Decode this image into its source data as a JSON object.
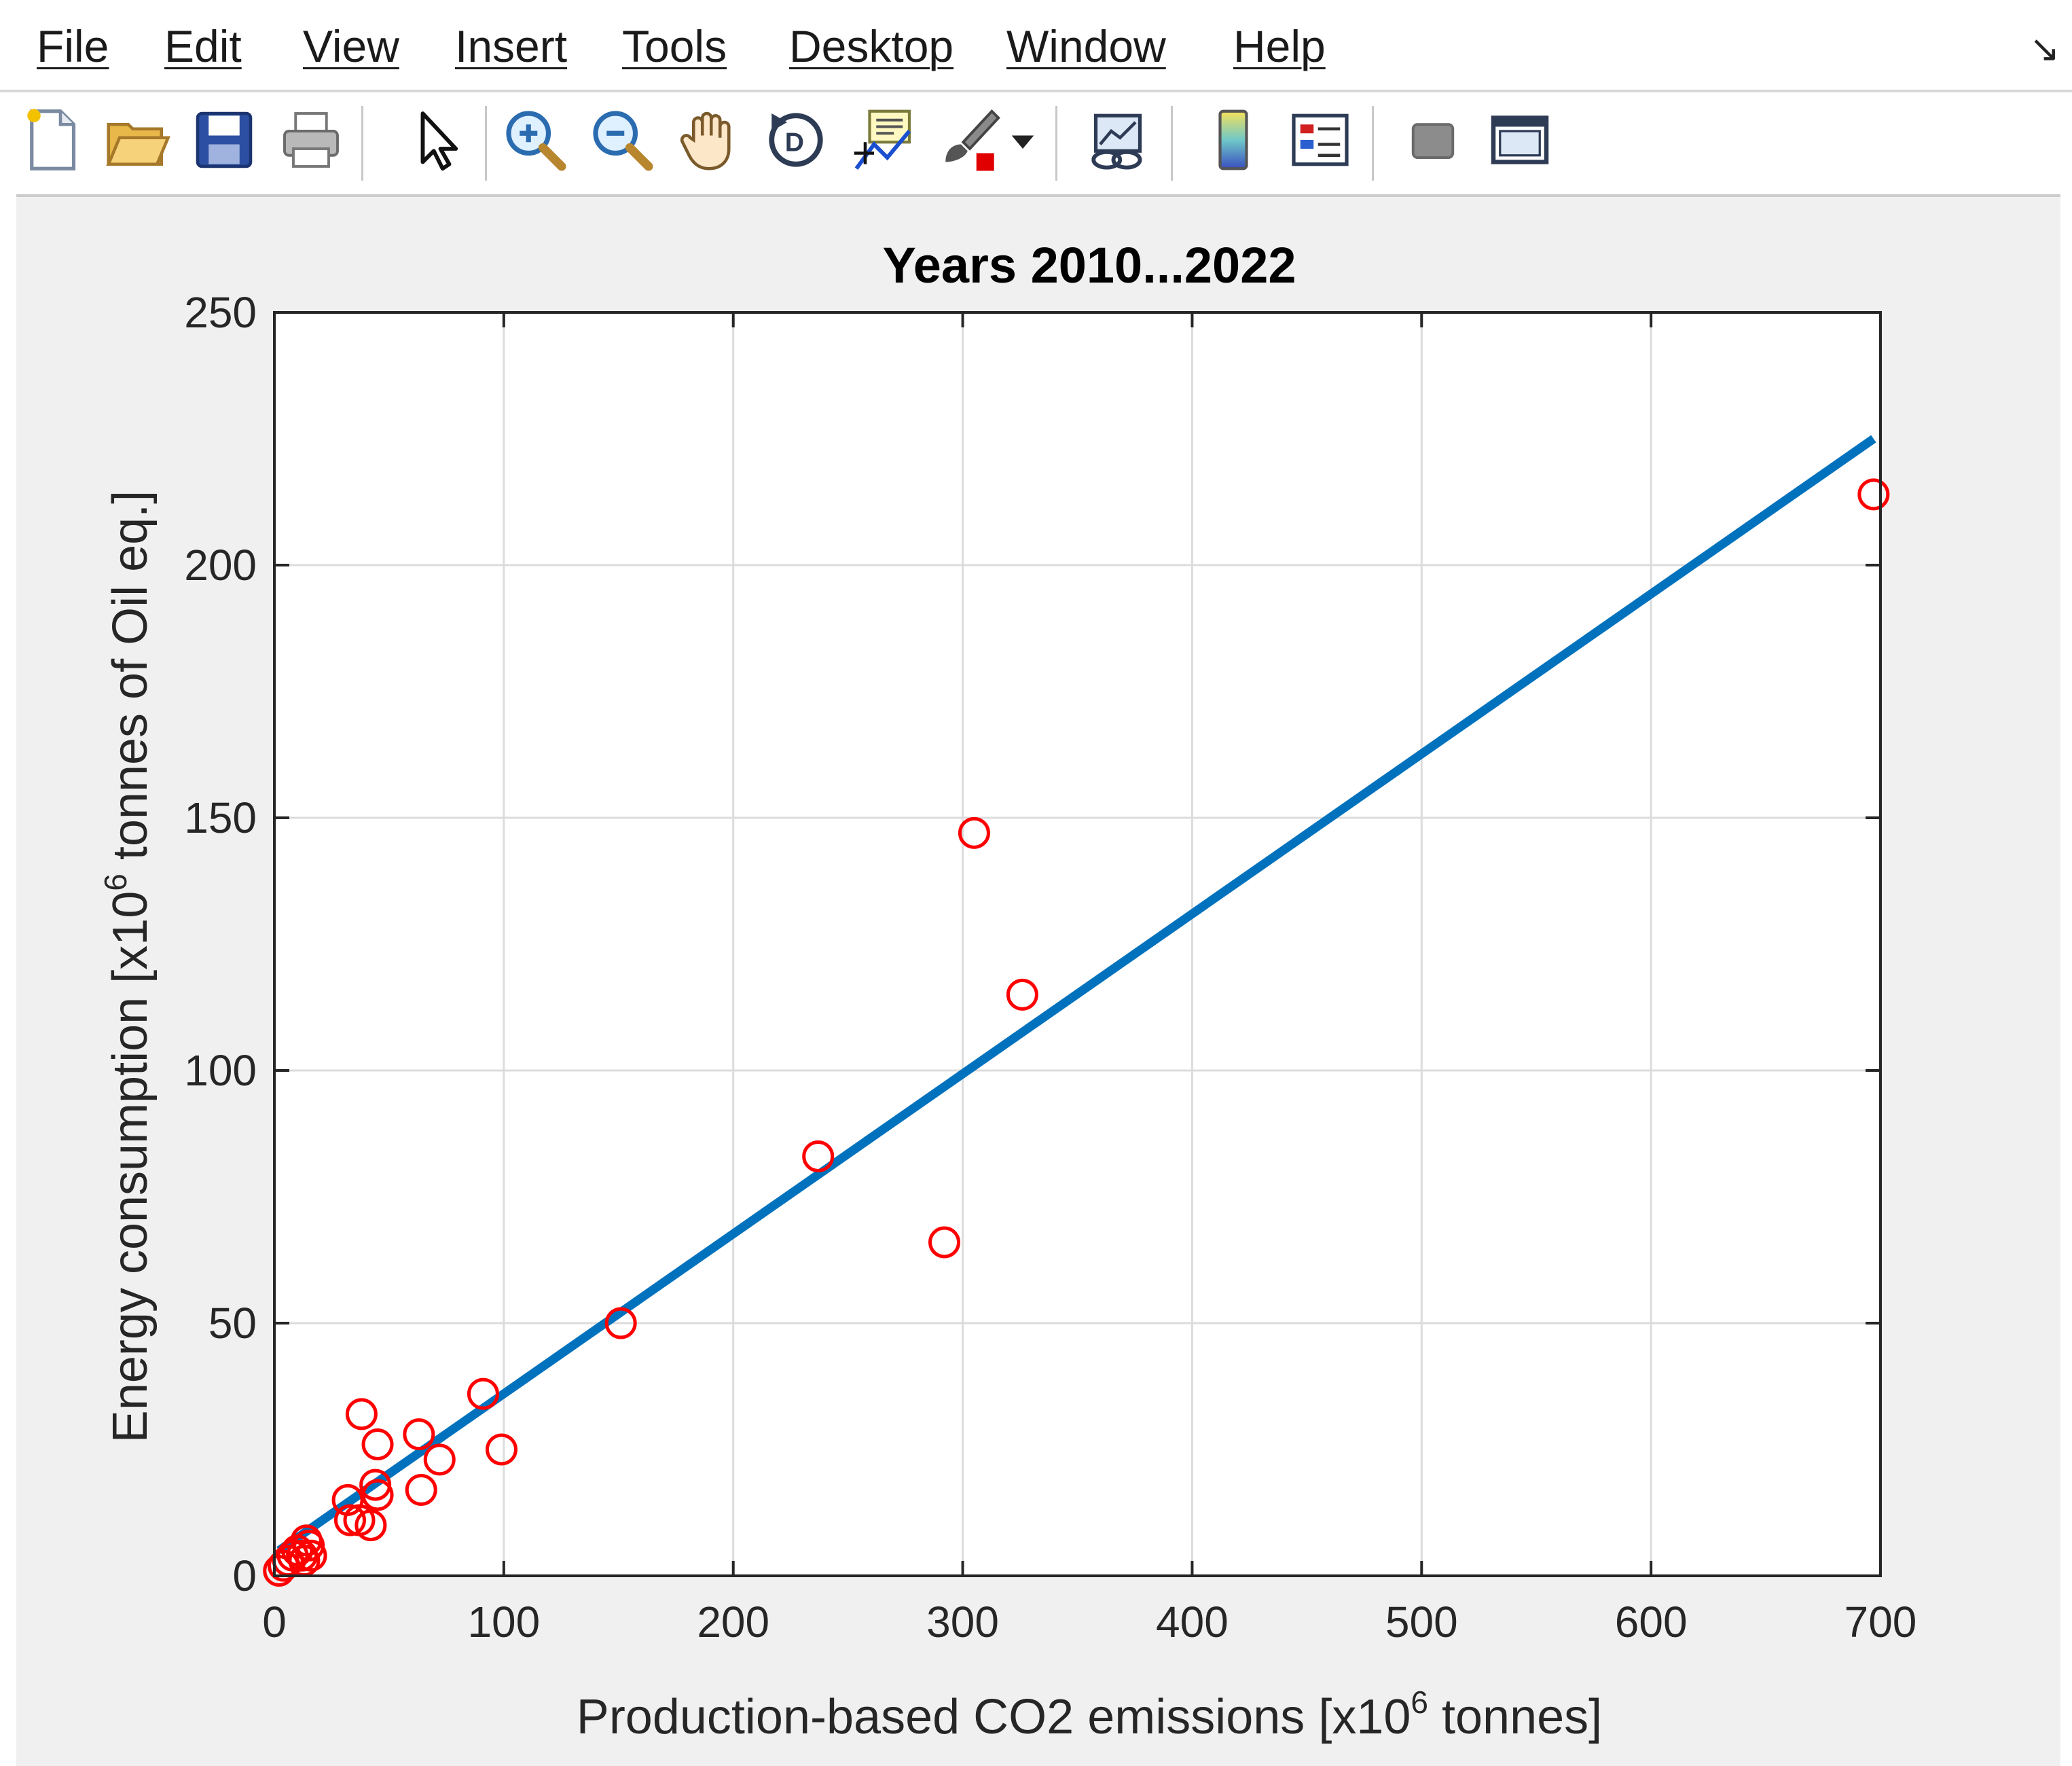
{
  "menu": {
    "items": [
      "File",
      "Edit",
      "View",
      "Insert",
      "Tools",
      "Desktop",
      "Window",
      "Help"
    ]
  },
  "toolbar": {
    "buttons": [
      {
        "name": "new-figure-icon"
      },
      {
        "name": "open-file-icon"
      },
      {
        "name": "save-icon"
      },
      {
        "name": "print-icon"
      },
      {
        "name": "pointer-icon"
      },
      {
        "name": "zoom-in-icon"
      },
      {
        "name": "zoom-out-icon"
      },
      {
        "name": "pan-icon"
      },
      {
        "name": "rotate-3d-icon"
      },
      {
        "name": "data-cursor-icon"
      },
      {
        "name": "brush-icon"
      },
      {
        "name": "dropdown-arrow-icon"
      },
      {
        "name": "link-plot-icon"
      },
      {
        "name": "colorbar-icon"
      },
      {
        "name": "legend-icon"
      },
      {
        "name": "hide-plot-tools-icon"
      },
      {
        "name": "show-plot-tools-icon"
      }
    ]
  },
  "colors": {
    "fit_line": "#0072bd",
    "markers": "#ff0000",
    "axes_bg": "#ffffff",
    "figure_bg": "#f0f0f0",
    "grid": "#dcdcdc"
  },
  "chart_data": {
    "type": "scatter",
    "title": "Years 2010...2022",
    "xlabel_pre": "Production-based CO2 emissions [x10",
    "xlabel_sup": "6",
    "xlabel_post": " tonnes]",
    "ylabel_pre": "Energy consumption [x10",
    "ylabel_sup": "6",
    "ylabel_post": " tonnes of Oil eq.]",
    "xlim": [
      0,
      700
    ],
    "ylim": [
      0,
      250
    ],
    "xticks": [
      0,
      100,
      200,
      300,
      400,
      500,
      600,
      700
    ],
    "yticks": [
      0,
      50,
      100,
      150,
      200,
      250
    ],
    "grid": true,
    "fit_line": {
      "x": [
        2,
        697
      ],
      "y": [
        5,
        225
      ]
    },
    "points": [
      {
        "x": 2,
        "y": 1
      },
      {
        "x": 4,
        "y": 2
      },
      {
        "x": 6,
        "y": 3
      },
      {
        "x": 8,
        "y": 4
      },
      {
        "x": 10,
        "y": 5
      },
      {
        "x": 12,
        "y": 4
      },
      {
        "x": 13,
        "y": 3
      },
      {
        "x": 14,
        "y": 7
      },
      {
        "x": 15,
        "y": 6
      },
      {
        "x": 16,
        "y": 4
      },
      {
        "x": 32,
        "y": 15
      },
      {
        "x": 33,
        "y": 11
      },
      {
        "x": 37,
        "y": 11
      },
      {
        "x": 38,
        "y": 32
      },
      {
        "x": 42,
        "y": 10
      },
      {
        "x": 44,
        "y": 18
      },
      {
        "x": 45,
        "y": 16
      },
      {
        "x": 45,
        "y": 26
      },
      {
        "x": 63,
        "y": 28
      },
      {
        "x": 64,
        "y": 17
      },
      {
        "x": 72,
        "y": 23
      },
      {
        "x": 91,
        "y": 36
      },
      {
        "x": 99,
        "y": 25
      },
      {
        "x": 151,
        "y": 50
      },
      {
        "x": 237,
        "y": 83
      },
      {
        "x": 292,
        "y": 66
      },
      {
        "x": 305,
        "y": 147
      },
      {
        "x": 326,
        "y": 115
      },
      {
        "x": 697,
        "y": 214
      }
    ]
  }
}
